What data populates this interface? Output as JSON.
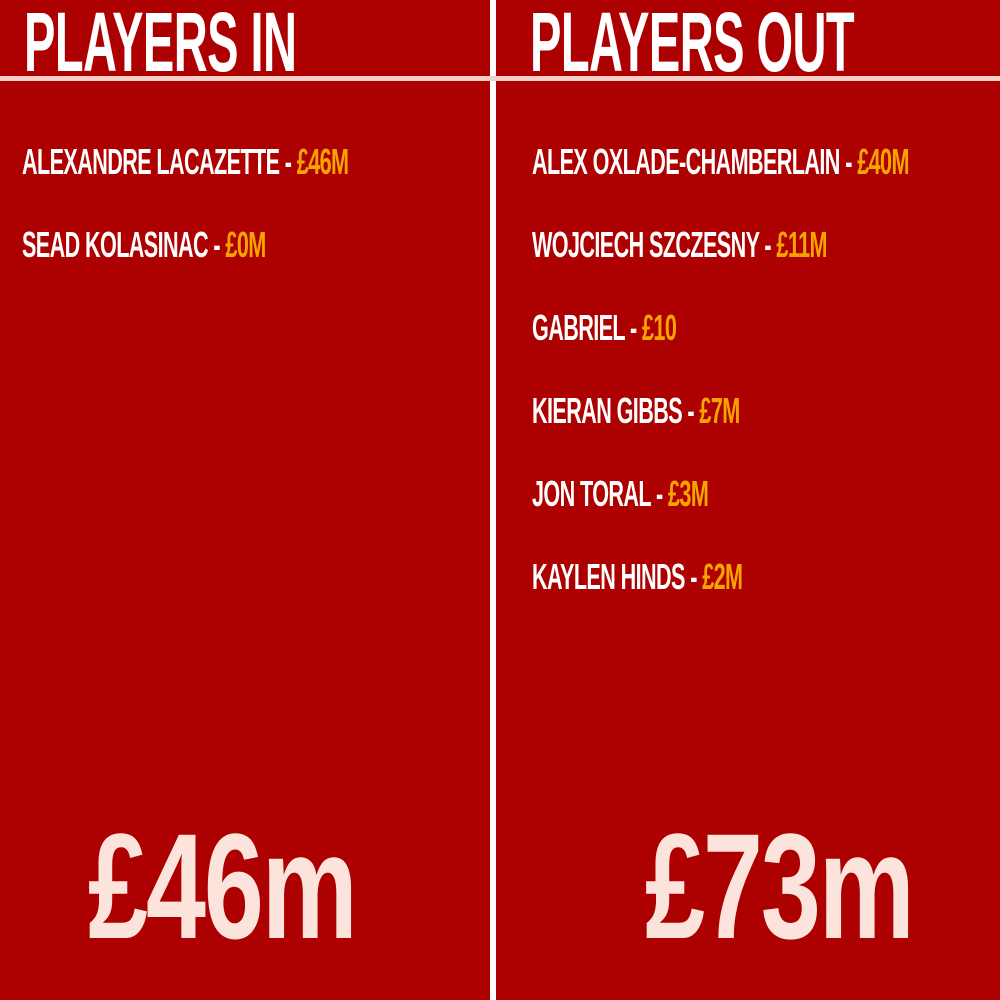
{
  "colors": {
    "background": "#ad0000",
    "fee": "#f6a400",
    "total": "#fce4dc",
    "text": "#ffffff"
  },
  "in": {
    "title": "PLAYERS IN",
    "players": [
      {
        "name": "ALEXANDRE LACAZETTE",
        "sep": " - ",
        "fee": "£46M"
      },
      {
        "name": "SEAD KOLASINAC",
        "sep": " - ",
        "fee": "£0M"
      }
    ],
    "total": "£46m"
  },
  "out": {
    "title": "PLAYERS OUT",
    "players": [
      {
        "name": "ALEX OXLADE-CHAMBERLAIN",
        "sep": " - ",
        "fee": "£40M"
      },
      {
        "name": "WOJCIECH SZCZESNY",
        "sep": " - ",
        "fee": "£11M"
      },
      {
        "name": "GABRIEL",
        "sep": " - ",
        "fee": "£10"
      },
      {
        "name": "KIERAN GIBBS",
        "sep": " - ",
        "fee": "£7M"
      },
      {
        "name": "JON TORAL",
        "sep": " - ",
        "fee": "£3M"
      },
      {
        "name": "KAYLEN HINDS",
        "sep": " - ",
        "fee": "£2M"
      }
    ],
    "total": "£73m"
  }
}
